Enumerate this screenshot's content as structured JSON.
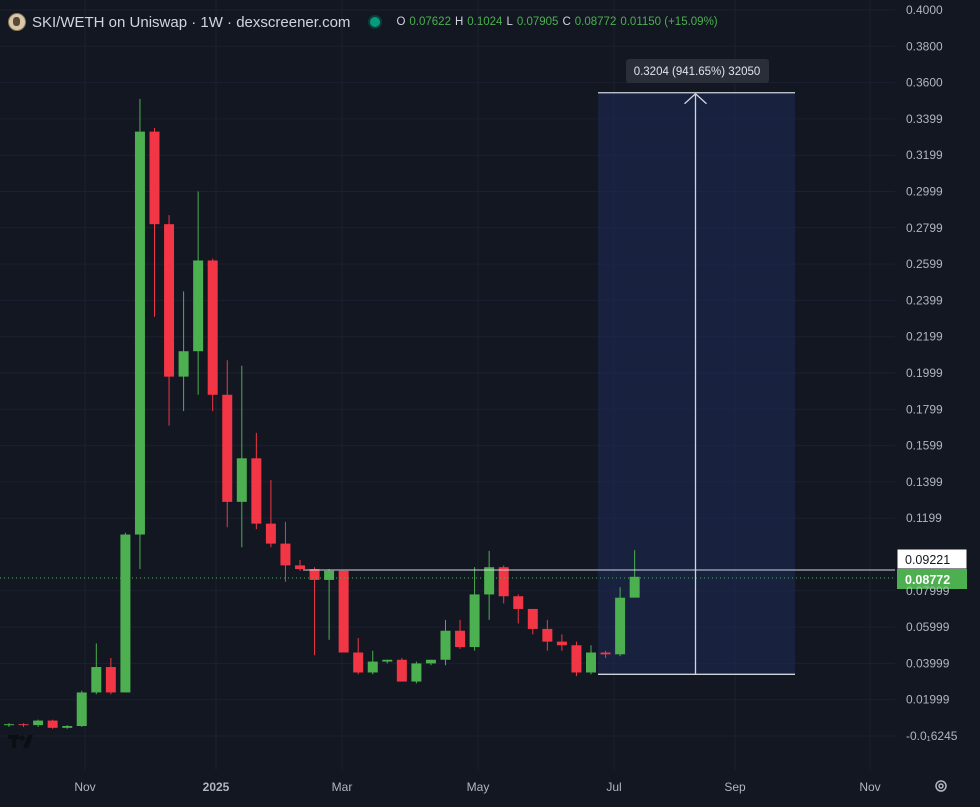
{
  "header": {
    "title": "SKI/WETH on Uniswap · 1W · dexscreener.com",
    "ohlc": [
      {
        "k": "O",
        "v": "0.07622"
      },
      {
        "k": "H",
        "v": "0.1024"
      },
      {
        "k": "L",
        "v": "0.07905"
      },
      {
        "k": "C",
        "v": "0.08772"
      },
      {
        "k": "",
        "v": "0.01150 (+15.09%)"
      }
    ]
  },
  "colors": {
    "up": "#4caf50",
    "down": "#f23645",
    "background": "#131722"
  },
  "chart_data": {
    "type": "candlestick",
    "y_ticks": [
      "0.4000",
      "0.3800",
      "0.3600",
      "0.3399",
      "0.3199",
      "0.2999",
      "0.2799",
      "0.2599",
      "0.2399",
      "0.2199",
      "0.1999",
      "0.1799",
      "0.1599",
      "0.1399",
      "0.1199",
      "0.07999",
      "0.05999",
      "0.03999",
      "0.01999",
      "-0.0₁6245"
    ],
    "x_ticks": [
      "Nov",
      "2025",
      "Mar",
      "May",
      "Jul",
      "Sep",
      "Nov"
    ],
    "ylim": [
      -0.004,
      0.4
    ],
    "candles": [
      {
        "o": 0.006,
        "h": 0.007,
        "l": 0.005,
        "c": 0.0065
      },
      {
        "o": 0.0065,
        "h": 0.007,
        "l": 0.005,
        "c": 0.006
      },
      {
        "o": 0.006,
        "h": 0.009,
        "l": 0.005,
        "c": 0.0085
      },
      {
        "o": 0.0085,
        "h": 0.009,
        "l": 0.004,
        "c": 0.0045
      },
      {
        "o": 0.0045,
        "h": 0.006,
        "l": 0.004,
        "c": 0.0055
      },
      {
        "o": 0.0055,
        "h": 0.025,
        "l": 0.005,
        "c": 0.024
      },
      {
        "o": 0.024,
        "h": 0.051,
        "l": 0.023,
        "c": 0.038
      },
      {
        "o": 0.038,
        "h": 0.043,
        "l": 0.023,
        "c": 0.024
      },
      {
        "o": 0.024,
        "h": 0.112,
        "l": 0.024,
        "c": 0.111
      },
      {
        "o": 0.111,
        "h": 0.351,
        "l": 0.092,
        "c": 0.333
      },
      {
        "o": 0.333,
        "h": 0.335,
        "l": 0.231,
        "c": 0.282
      },
      {
        "o": 0.282,
        "h": 0.287,
        "l": 0.171,
        "c": 0.198
      },
      {
        "o": 0.198,
        "h": 0.245,
        "l": 0.179,
        "c": 0.212
      },
      {
        "o": 0.212,
        "h": 0.3,
        "l": 0.188,
        "c": 0.262
      },
      {
        "o": 0.262,
        "h": 0.263,
        "l": 0.179,
        "c": 0.188
      },
      {
        "o": 0.188,
        "h": 0.207,
        "l": 0.115,
        "c": 0.129
      },
      {
        "o": 0.129,
        "h": 0.204,
        "l": 0.104,
        "c": 0.153
      },
      {
        "o": 0.153,
        "h": 0.167,
        "l": 0.114,
        "c": 0.117
      },
      {
        "o": 0.117,
        "h": 0.141,
        "l": 0.104,
        "c": 0.106
      },
      {
        "o": 0.106,
        "h": 0.118,
        "l": 0.085,
        "c": 0.094
      },
      {
        "o": 0.094,
        "h": 0.097,
        "l": 0.091,
        "c": 0.092
      },
      {
        "o": 0.092,
        "h": 0.093,
        "l": 0.0445,
        "c": 0.086
      },
      {
        "o": 0.086,
        "h": 0.092,
        "l": 0.053,
        "c": 0.091
      },
      {
        "o": 0.091,
        "h": 0.091,
        "l": 0.046,
        "c": 0.046
      },
      {
        "o": 0.046,
        "h": 0.054,
        "l": 0.034,
        "c": 0.035
      },
      {
        "o": 0.035,
        "h": 0.047,
        "l": 0.034,
        "c": 0.041
      },
      {
        "o": 0.041,
        "h": 0.042,
        "l": 0.04,
        "c": 0.042
      },
      {
        "o": 0.042,
        "h": 0.043,
        "l": 0.03,
        "c": 0.03
      },
      {
        "o": 0.03,
        "h": 0.041,
        "l": 0.029,
        "c": 0.04
      },
      {
        "o": 0.04,
        "h": 0.042,
        "l": 0.039,
        "c": 0.042
      },
      {
        "o": 0.042,
        "h": 0.064,
        "l": 0.039,
        "c": 0.058
      },
      {
        "o": 0.058,
        "h": 0.064,
        "l": 0.048,
        "c": 0.049
      },
      {
        "o": 0.049,
        "h": 0.093,
        "l": 0.047,
        "c": 0.078
      },
      {
        "o": 0.078,
        "h": 0.102,
        "l": 0.064,
        "c": 0.093
      },
      {
        "o": 0.093,
        "h": 0.094,
        "l": 0.073,
        "c": 0.077
      },
      {
        "o": 0.077,
        "h": 0.078,
        "l": 0.062,
        "c": 0.07
      },
      {
        "o": 0.07,
        "h": 0.07,
        "l": 0.056,
        "c": 0.059
      },
      {
        "o": 0.059,
        "h": 0.064,
        "l": 0.047,
        "c": 0.052
      },
      {
        "o": 0.052,
        "h": 0.056,
        "l": 0.047,
        "c": 0.05
      },
      {
        "o": 0.05,
        "h": 0.052,
        "l": 0.033,
        "c": 0.035
      },
      {
        "o": 0.035,
        "h": 0.05,
        "l": 0.034,
        "c": 0.046
      },
      {
        "o": 0.046,
        "h": 0.047,
        "l": 0.043,
        "c": 0.045
      },
      {
        "o": 0.045,
        "h": 0.082,
        "l": 0.044,
        "c": 0.0762
      },
      {
        "o": 0.07622,
        "h": 0.1024,
        "l": 0.07905,
        "c": 0.08772
      }
    ],
    "measure": {
      "label": "0.3204 (941.65%) 32050",
      "from_price": 0.034,
      "to_price": 0.3544
    },
    "price_lines": [
      {
        "label": "0.09221",
        "price": 0.09221,
        "style": "white"
      },
      {
        "label": "0.08772",
        "price": 0.08772,
        "style": "green"
      }
    ],
    "grid": true
  }
}
